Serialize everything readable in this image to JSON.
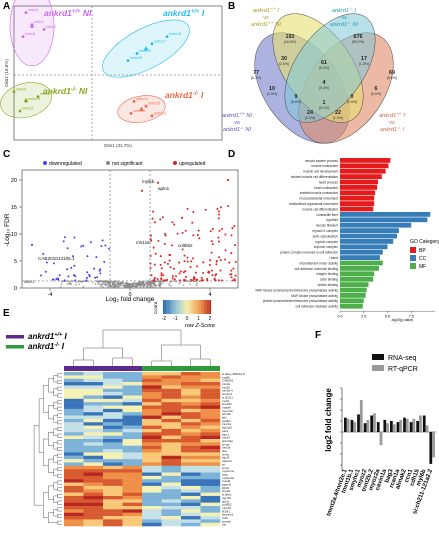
{
  "panels": {
    "a": "A",
    "b": "B",
    "c": "C",
    "d": "D",
    "e": "E",
    "f": "F"
  },
  "pca": {
    "xlabel": "Dim1 (31.7%)",
    "ylabel": "Dim2 (18.6%)",
    "groups": [
      {
        "pre": "ankrd1",
        "sup": "+/+",
        "post": " NI",
        "color": "#cc66ee"
      },
      {
        "pre": "ankrd1",
        "sup": "+/+",
        "post": " I",
        "color": "#22bbee"
      },
      {
        "pre": "ankrd1",
        "sup": "-/-",
        "post": " NI",
        "color": "#88aa22"
      },
      {
        "pre": "ankrd1",
        "sup": "-/-",
        "post": " I",
        "color": "#ee6644"
      }
    ],
    "points": [
      {
        "g": 0,
        "x": -2.2,
        "y": 2.6,
        "label": "mrbc4"
      },
      {
        "g": 0,
        "x": -2.0,
        "y": 2.1,
        "label": "mrbc3"
      },
      {
        "g": 0,
        "x": -2.3,
        "y": 1.6,
        "label": "mrbc5"
      },
      {
        "g": 0,
        "x": -1.6,
        "y": 1.9,
        "label": "mrbc2"
      },
      {
        "g": 1,
        "x": 1.2,
        "y": 0.6,
        "label": "mrbc19"
      },
      {
        "g": 1,
        "x": 1.5,
        "y": 0.9,
        "label": "mrbc20"
      },
      {
        "g": 1,
        "x": 2.0,
        "y": 1.3,
        "label": "mrbc17"
      },
      {
        "g": 1,
        "x": 2.5,
        "y": 1.6,
        "label": "mrbc18"
      },
      {
        "g": 2,
        "x": -2.6,
        "y": -0.7,
        "label": "mrbc9"
      },
      {
        "g": 2,
        "x": -2.2,
        "y": -1.1,
        "label": "mrbc10"
      },
      {
        "g": 2,
        "x": -1.8,
        "y": -0.9,
        "label": "mrbc8"
      },
      {
        "g": 2,
        "x": -2.4,
        "y": -1.5,
        "label": "mrbc11"
      },
      {
        "g": 3,
        "x": 1.4,
        "y": -1.1,
        "label": "mrbc13"
      },
      {
        "g": 3,
        "x": 1.8,
        "y": -1.3,
        "label": "mrbc15"
      },
      {
        "g": 3,
        "x": 1.3,
        "y": -1.6,
        "label": "mrbc14"
      },
      {
        "g": 3,
        "x": 2.0,
        "y": -1.7,
        "label": "mrbc12"
      }
    ]
  },
  "venn": {
    "labels": [
      {
        "pre": "ankrd1",
        "sup": "+/+",
        "post": " I"
      },
      {
        "t": "vs"
      },
      {
        "pre": "ankrd1",
        "sup": "+/+",
        "post": " NI"
      },
      {
        "pre": "ankrd1",
        "sup": "-/-",
        "post": " I"
      },
      {
        "t": "vs"
      },
      {
        "pre": "ankrd1",
        "sup": "-/-",
        "post": " NI"
      },
      {
        "pre": "ankrd1",
        "sup": "+/+",
        "post": " NI"
      },
      {
        "t": "vs"
      },
      {
        "pre": "ankrd1",
        "sup": "-/-",
        "post": " NI"
      },
      {
        "pre": "ankrd1",
        "sup": "+/+",
        "post": " I"
      },
      {
        "t": "vs"
      },
      {
        "pre": "ankrd1",
        "sup": "-/-",
        "post": " I"
      }
    ],
    "regions": [
      {
        "n": "192",
        "p": "(16.8%)"
      },
      {
        "n": "676",
        "p": "(59.2%)"
      },
      {
        "n": "77",
        "p": "(6.7%)"
      },
      {
        "n": "69",
        "p": "(6.0%)"
      },
      {
        "n": "61",
        "p": "(5.3%)"
      },
      {
        "n": "30",
        "p": "(2.6%)"
      },
      {
        "n": "17",
        "p": "(1.5%)"
      },
      {
        "n": "10",
        "p": "(0.9%)"
      },
      {
        "n": "6",
        "p": "(0.5%)"
      },
      {
        "n": "4",
        "p": "(0.4%)"
      },
      {
        "n": "1",
        "p": "(0.1%)"
      },
      {
        "n": "9",
        "p": "(0.8%)"
      },
      {
        "n": "0",
        "p": "(0.0%)"
      },
      {
        "n": "24",
        "p": "(2.1%)"
      },
      {
        "n": "22",
        "p": "(1.9%)"
      }
    ]
  },
  "volcano": {
    "legend": [
      "downregulated",
      "not significant",
      "upregulated"
    ],
    "colors": {
      "down": "#4444ee",
      "ns": "#888888",
      "up": "#dd2222"
    },
    "xlabel": "Log₂ fold change",
    "ylabel": "-Log₁₀ FDR",
    "xticks": [
      -4,
      0,
      4
    ],
    "yticks": [
      0,
      5,
      10,
      15,
      20
    ],
    "genes": [
      "myl6b",
      "apln1",
      "CABZ01014105.1",
      "mir116",
      "col6l52",
      "ifi30l.1"
    ]
  },
  "go": {
    "legend_title": "GO Category",
    "legend": [
      {
        "k": "BP",
        "color": "#e41a1c"
      },
      {
        "k": "CC",
        "color": "#377eb8"
      },
      {
        "k": "MF",
        "color": "#4daf4a"
      }
    ],
    "xlabel": "-log10(p.value)",
    "xticks": [
      "0.0",
      "2.5",
      "5.0",
      "7.5"
    ],
    "chart_data": {
      "type": "bar",
      "categories": [
        "muscle system process",
        "muscle contraction",
        "muscle cell development",
        "striated muscle cell differentiation",
        "heart process",
        "heart contraction",
        "skeletal muscle contraction",
        "musculoskeletal movement",
        "multicellular organismal movement",
        "muscle cell differentiation",
        "contractile fiber",
        "myofibril",
        "muscle filament",
        "myosin II complex",
        "actin cytoskeleton",
        "myosin complex",
        "troponin complex",
        "protein complex involved in cell adhesion",
        "I band",
        "microfilament motor activity",
        "cell adhesion molecule binding",
        "integrin binding",
        "actin binding",
        "actinin binding",
        "MAP kinase tyrosine/serine/threonine phosphatase activity",
        "MAP kinase phosphatase activity",
        "protein tyrosine/serine/threonine phosphatase activity",
        "cell adhesion mediator activity"
      ],
      "group": [
        "BP",
        "BP",
        "BP",
        "BP",
        "BP",
        "BP",
        "BP",
        "BP",
        "BP",
        "BP",
        "CC",
        "CC",
        "CC",
        "CC",
        "CC",
        "CC",
        "CC",
        "CC",
        "CC",
        "MF",
        "MF",
        "MF",
        "MF",
        "MF",
        "MF",
        "MF",
        "MF",
        "MF"
      ],
      "values": [
        5.3,
        5.1,
        4.8,
        4.4,
        4.0,
        3.9,
        3.7,
        3.6,
        3.6,
        3.5,
        9.5,
        9.2,
        7.5,
        6.2,
        6.0,
        5.6,
        5.0,
        4.5,
        4.2,
        4.5,
        4.1,
        3.6,
        3.5,
        3.0,
        2.8,
        2.7,
        2.5,
        2.4
      ],
      "xlabel": "-log10(p.value)",
      "xlim": [
        0,
        10
      ]
    }
  },
  "heatmap": {
    "legend_title": "Count",
    "legend_sub": "row Z-Score",
    "scale": [
      "-2",
      "-1",
      "0",
      "1",
      "2"
    ],
    "groups": [
      {
        "pre": "ankrd1",
        "sup": "+/+",
        "post": " I",
        "color": "#5b2a8a"
      },
      {
        "pre": "ankrd1",
        "sup": "-/-",
        "post": " I",
        "color": "#2f9a3c"
      }
    ],
    "genes": [
      "si:dkey-259k14.5",
      "myl6b",
      "CABZ01",
      "tnnt2e",
      "myl10",
      "tnni2a.4",
      "smyhc1",
      "si:ch211",
      "myh2",
      "ckmt2b",
      "mylpfb",
      "myoz2a",
      "actn3b",
      "ak1",
      "pvalb1",
      "tnnc3a",
      "atp2a1l",
      "cav3",
      "zgc:1",
      "mylz3",
      "ankrd1a",
      "ckma",
      "tnnt3a",
      "des",
      "vmhc",
      "zgc:8",
      "casq1a",
      "srl",
      "smpx",
      "myom1a",
      "tcap",
      "mybpc2a",
      "tmod4",
      "pgam2",
      "ldb3b",
      "xirp2a",
      "si:dkey",
      "zgc:65",
      "apln1",
      "col6l52",
      "mir116",
      "ifi30l.1",
      "serpine1",
      "fn1b",
      "postnb",
      "tnc"
    ],
    "rows": 46,
    "cols": 8
  },
  "rtq": {
    "ylabel": "log2 fold change",
    "legend": [
      {
        "k": "RNA-seq",
        "color": "#111111"
      },
      {
        "k": "RT-qPCR",
        "color": "#9a9a9a"
      }
    ],
    "chart_data": {
      "type": "bar",
      "categories": [
        "tmnt2a.4/tnnt2e.1",
        "tmnt1b.1",
        "smyhc1",
        "myoz2",
        "tnnt2b.2",
        "myoz2a",
        "cavin1a",
        "bag3",
        "rcan1a",
        "ahnak2",
        "ccn1",
        "cdh15",
        "myl6b",
        "si:ch211-121a2.2"
      ],
      "series": [
        {
          "name": "RNA-seq",
          "values": [
            1.3,
            1.1,
            1.6,
            0.8,
            1.5,
            0.9,
            1.1,
            1.0,
            0.9,
            1.3,
            0.9,
            1.0,
            1.5,
            -2.9
          ]
        },
        {
          "name": "RT-qPCR",
          "values": [
            1.2,
            0.9,
            2.9,
            1.1,
            1.7,
            -1.2,
            0.8,
            0.7,
            1.1,
            1.2,
            1.2,
            1.5,
            0.6,
            -2.3
          ]
        }
      ],
      "ylim": [
        -3.5,
        4
      ]
    }
  }
}
